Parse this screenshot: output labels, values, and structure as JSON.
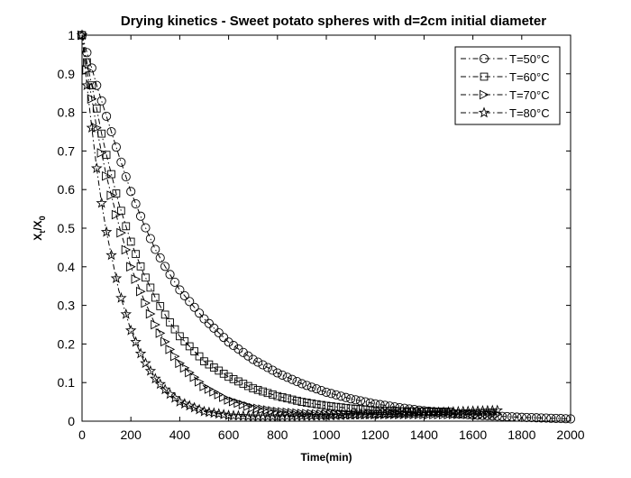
{
  "chart_data": {
    "type": "line",
    "title": "Drying kinetics - Sweet potato spheres with d=2cm initial diameter",
    "xlabel": "Time(min)",
    "ylabel": "X_t/X_0",
    "xlim": [
      0,
      2000
    ],
    "ylim": [
      0,
      1
    ],
    "x_ticks": [
      0,
      200,
      400,
      600,
      800,
      1000,
      1200,
      1400,
      1600,
      1800,
      2000
    ],
    "y_ticks": [
      0,
      0.1,
      0.2,
      0.3,
      0.4,
      0.5,
      0.6,
      0.7,
      0.8,
      0.9,
      1
    ],
    "x_tick_labels": [
      "0",
      "200",
      "400",
      "600",
      "800",
      "1000",
      "1200",
      "1400",
      "1600",
      "1800",
      "2000"
    ],
    "y_tick_labels": [
      "0",
      "0.1",
      "0.2",
      "0.3",
      "0.4",
      "0.5",
      "0.6",
      "0.7",
      "0.8",
      "0.9",
      "1"
    ],
    "grid": false,
    "legend_position": "top-right",
    "line_style": "dash-dot",
    "series": [
      {
        "name": "T=50°C",
        "marker": "circle",
        "color": "#000000",
        "x": [
          0,
          20,
          40,
          60,
          80,
          100,
          150,
          200,
          250,
          300,
          350,
          400,
          500,
          600,
          700,
          800,
          900,
          1000,
          1100,
          1200,
          1300,
          1400,
          1500,
          1600,
          1700,
          1800,
          1900,
          2000
        ],
        "y": [
          1.0,
          0.955,
          0.915,
          0.87,
          0.83,
          0.79,
          0.69,
          0.595,
          0.515,
          0.445,
          0.39,
          0.34,
          0.265,
          0.205,
          0.16,
          0.125,
          0.097,
          0.075,
          0.058,
          0.045,
          0.035,
          0.027,
          0.021,
          0.016,
          0.013,
          0.01,
          0.008,
          0.006
        ]
      },
      {
        "name": "T=60°C",
        "marker": "square",
        "color": "#000000",
        "x": [
          0,
          20,
          40,
          60,
          80,
          100,
          150,
          200,
          250,
          300,
          350,
          400,
          500,
          600,
          700,
          800,
          900,
          1000,
          1100,
          1200,
          1300,
          1400,
          1500
        ],
        "y": [
          1.0,
          0.93,
          0.87,
          0.81,
          0.745,
          0.69,
          0.565,
          0.465,
          0.385,
          0.32,
          0.265,
          0.22,
          0.155,
          0.115,
          0.085,
          0.065,
          0.05,
          0.04,
          0.033,
          0.028,
          0.026,
          0.025,
          0.025
        ]
      },
      {
        "name": "T=70°C",
        "marker": "triangle-right",
        "color": "#000000",
        "x": [
          0,
          20,
          40,
          60,
          80,
          100,
          150,
          200,
          250,
          300,
          350,
          400,
          500,
          600,
          700,
          800,
          900,
          1000,
          1100,
          1200,
          1300,
          1400,
          1500,
          1600,
          1700
        ],
        "y": [
          1.0,
          0.91,
          0.835,
          0.76,
          0.695,
          0.635,
          0.51,
          0.4,
          0.32,
          0.25,
          0.195,
          0.15,
          0.09,
          0.055,
          0.035,
          0.025,
          0.02,
          0.018,
          0.017,
          0.017,
          0.017,
          0.017,
          0.017,
          0.018,
          0.018
        ]
      },
      {
        "name": "T=80°C",
        "marker": "star",
        "color": "#000000",
        "x": [
          0,
          20,
          40,
          60,
          80,
          100,
          150,
          200,
          250,
          300,
          350,
          400,
          500,
          600,
          700,
          800,
          900,
          1000,
          1100,
          1200,
          1300,
          1400,
          1500,
          1600,
          1700
        ],
        "y": [
          1.0,
          0.87,
          0.76,
          0.655,
          0.565,
          0.49,
          0.34,
          0.235,
          0.16,
          0.11,
          0.075,
          0.05,
          0.025,
          0.015,
          0.012,
          0.012,
          0.013,
          0.014,
          0.016,
          0.018,
          0.02,
          0.022,
          0.024,
          0.026,
          0.028
        ]
      }
    ]
  }
}
